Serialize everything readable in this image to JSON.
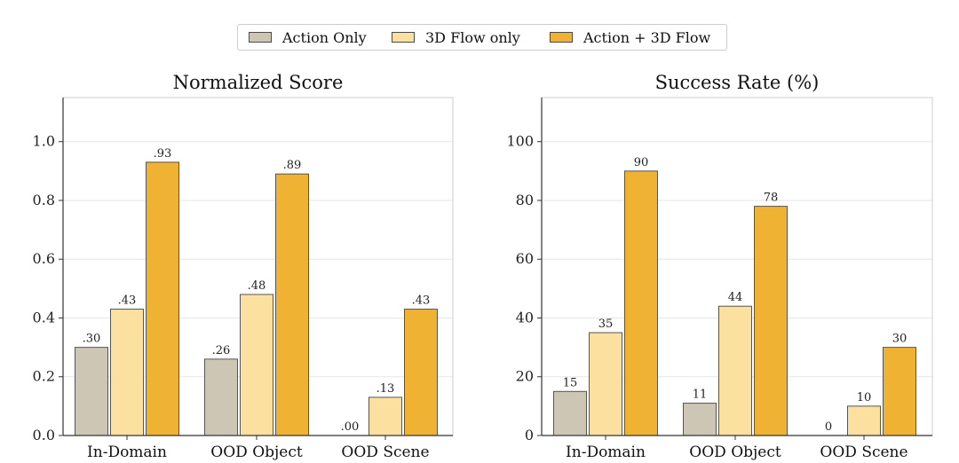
{
  "legend": {
    "items": [
      {
        "label": "Action Only",
        "color": "#cdc6b4"
      },
      {
        "label": "3D Flow only",
        "color": "#fbe0a0"
      },
      {
        "label": "Action + 3D Flow",
        "color": "#f0b232"
      }
    ]
  },
  "chart_data": [
    {
      "type": "bar",
      "title": "Normalized Score",
      "categories": [
        "In-Domain",
        "OOD Object",
        "OOD Scene"
      ],
      "ylim": [
        0,
        1.15
      ],
      "yticks": [
        0.0,
        0.2,
        0.4,
        0.6,
        0.8,
        1.0
      ],
      "ytick_labels": [
        "0.0",
        "0.2",
        "0.4",
        "0.6",
        "0.8",
        "1.0"
      ],
      "grid": "horizontal",
      "series": [
        {
          "name": "Action Only",
          "values": [
            0.3,
            0.26,
            0.0
          ],
          "labels": [
            ".30",
            ".26",
            ".00"
          ]
        },
        {
          "name": "3D Flow only",
          "values": [
            0.43,
            0.48,
            0.13
          ],
          "labels": [
            ".43",
            ".48",
            ".13"
          ]
        },
        {
          "name": "Action + 3D Flow",
          "values": [
            0.93,
            0.89,
            0.43
          ],
          "labels": [
            ".93",
            ".89",
            ".43"
          ]
        }
      ]
    },
    {
      "type": "bar",
      "title": "Success Rate (%)",
      "categories": [
        "In-Domain",
        "OOD Object",
        "OOD Scene"
      ],
      "ylim": [
        0,
        115
      ],
      "yticks": [
        0,
        20,
        40,
        60,
        80,
        100
      ],
      "ytick_labels": [
        "0",
        "20",
        "40",
        "60",
        "80",
        "100"
      ],
      "grid": "horizontal",
      "series": [
        {
          "name": "Action Only",
          "values": [
            15,
            11,
            0
          ],
          "labels": [
            "15",
            "11",
            "0"
          ]
        },
        {
          "name": "3D Flow only",
          "values": [
            35,
            44,
            10
          ],
          "labels": [
            "35",
            "44",
            "10"
          ]
        },
        {
          "name": "Action + 3D Flow",
          "values": [
            90,
            78,
            30
          ],
          "labels": [
            "90",
            "78",
            "30"
          ]
        }
      ]
    }
  ]
}
